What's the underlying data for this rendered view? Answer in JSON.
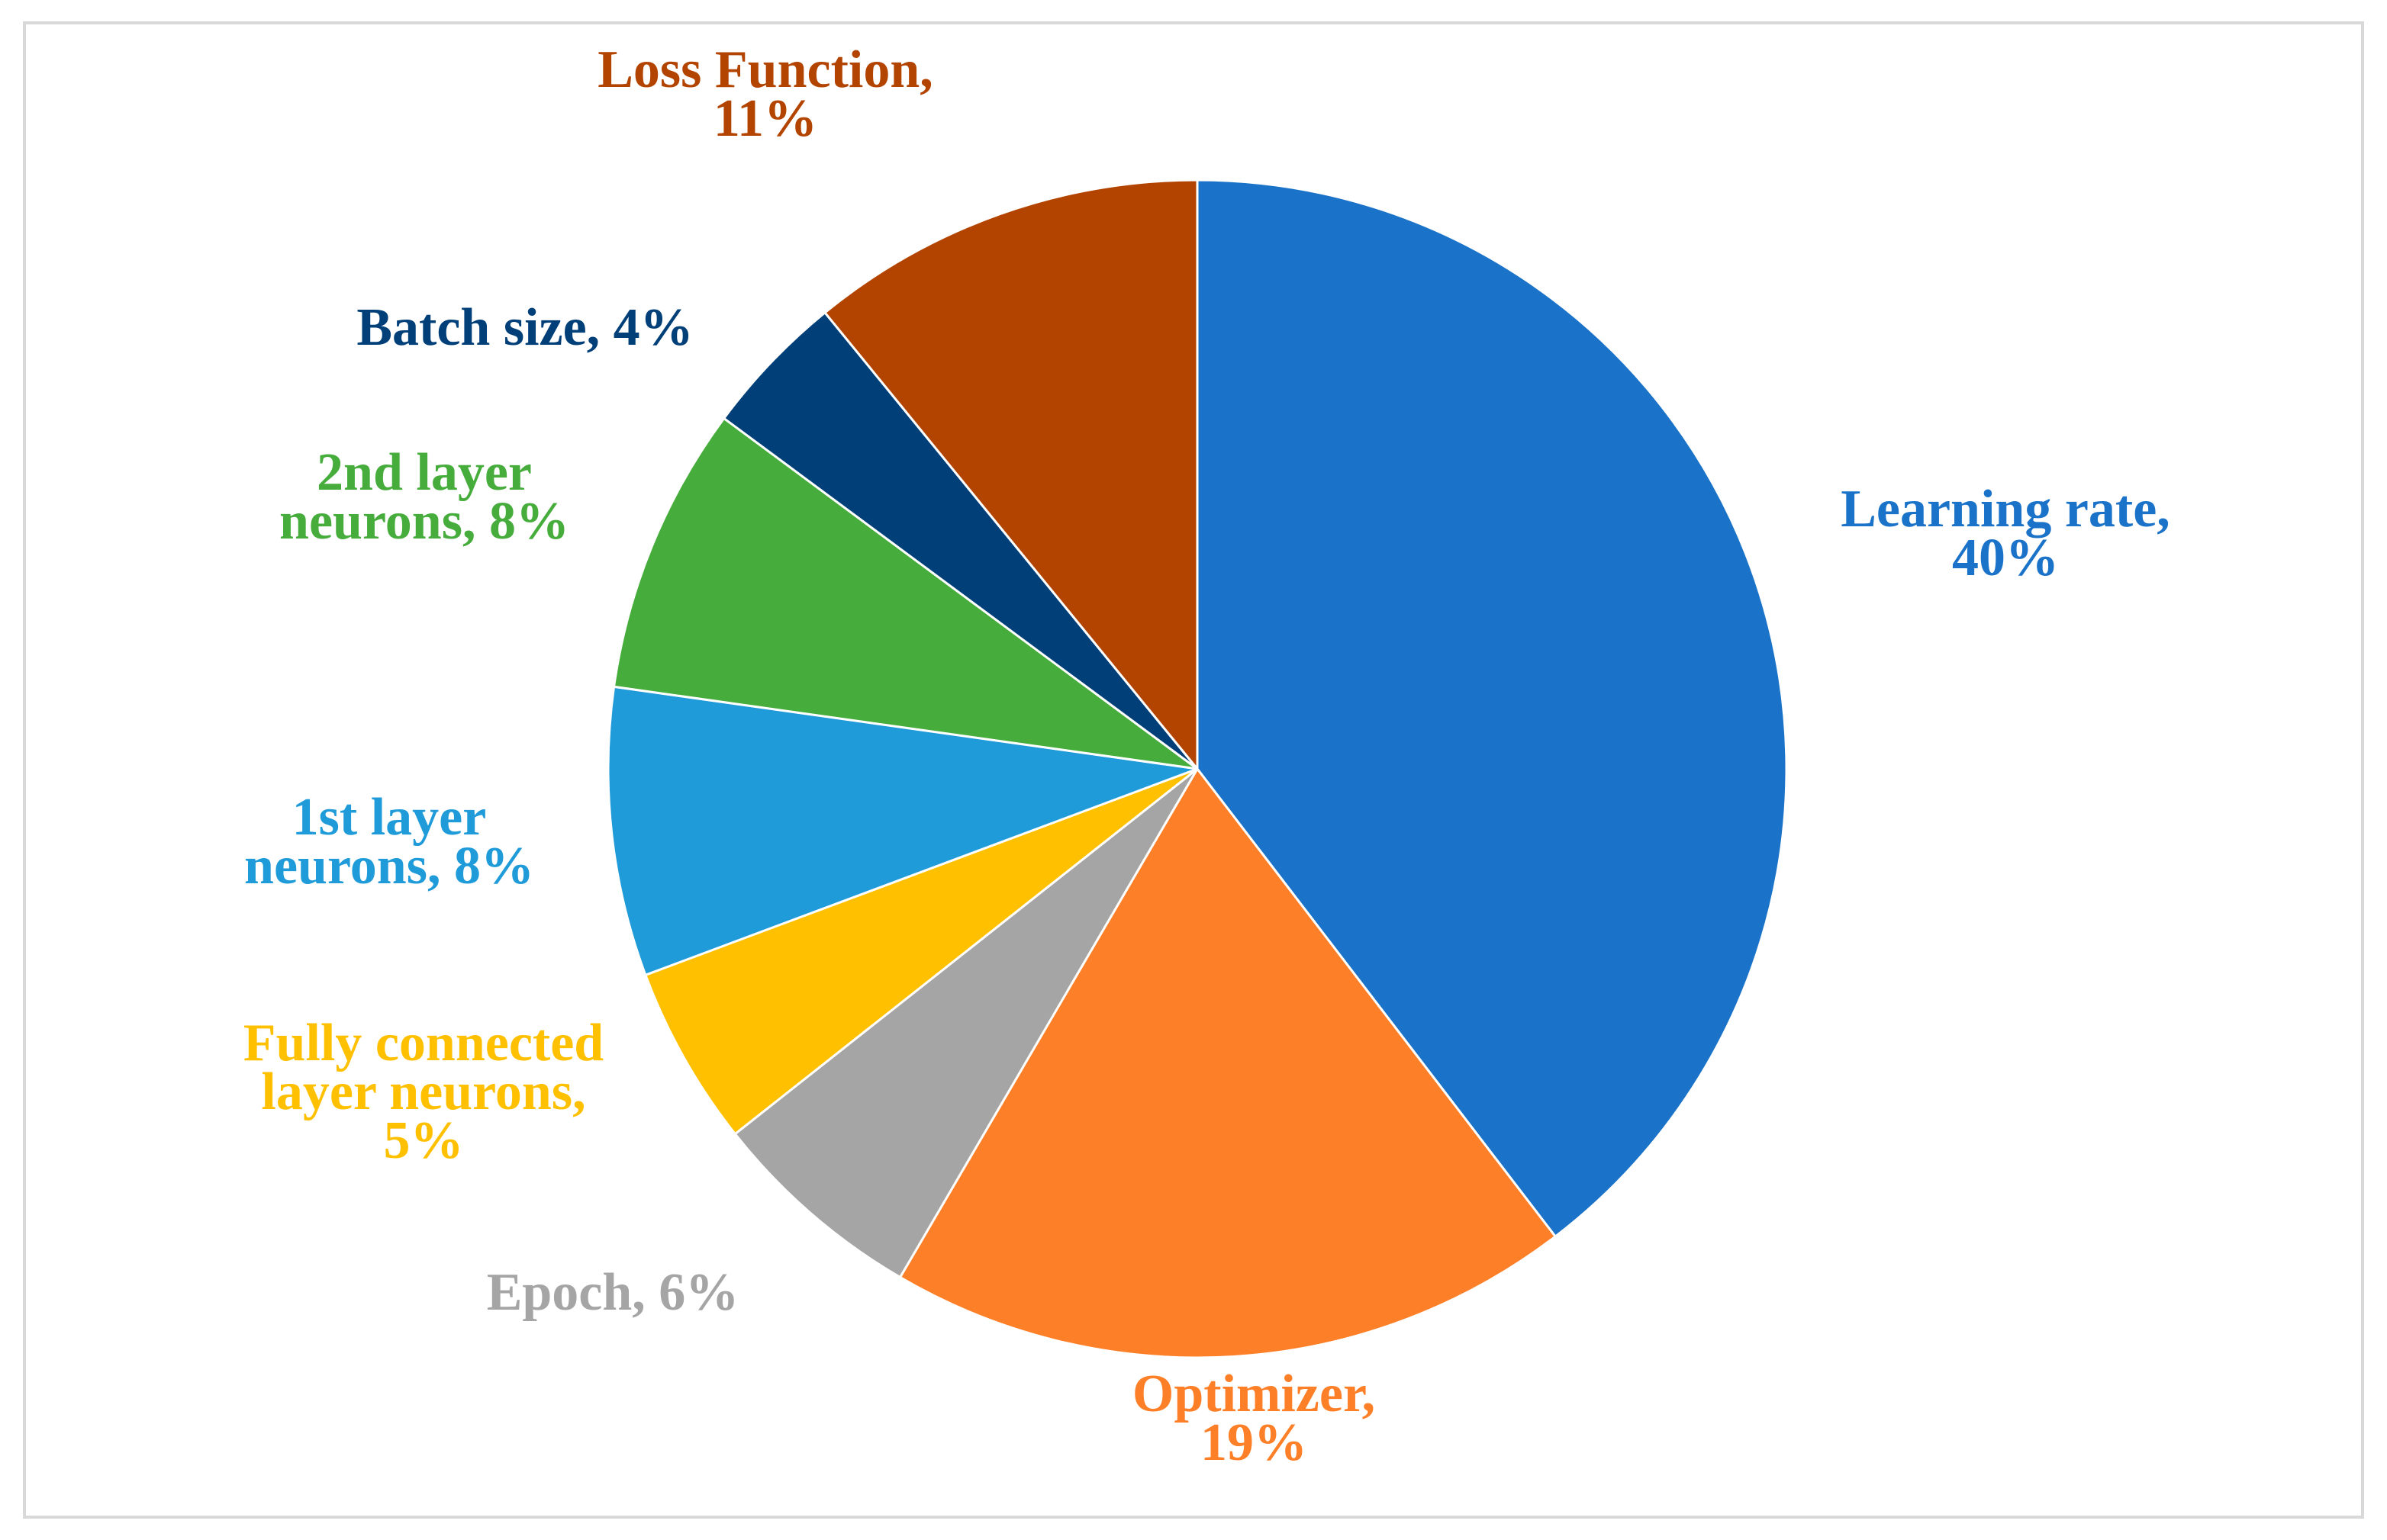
{
  "chart_data": {
    "type": "pie",
    "title": "",
    "legend": "none",
    "slices": [
      {
        "label": "Learning rate",
        "value": 40,
        "color": "#1a73c8",
        "label_lines": [
          "Learning rate,",
          "40%"
        ]
      },
      {
        "label": "Optimizer",
        "value": 19,
        "color": "#fd7f28",
        "label_lines": [
          "Optimizer,",
          "19%"
        ]
      },
      {
        "label": "Epoch",
        "value": 6,
        "color": "#a5a5a5",
        "label_lines": [
          "Epoch, 6%"
        ]
      },
      {
        "label": "Fully connected layer neurons",
        "value": 5,
        "color": "#ffc000",
        "label_lines": [
          "Fully connected",
          "layer neurons,",
          "5%"
        ]
      },
      {
        "label": "1st layer neurons",
        "value": 8,
        "color": "#1f9bd9",
        "label_lines": [
          "1st layer",
          "neurons, 8%"
        ]
      },
      {
        "label": "2nd layer neurons",
        "value": 8,
        "color": "#46ad3c",
        "label_lines": [
          "2nd layer",
          "neurons, 8%"
        ]
      },
      {
        "label": "Batch size",
        "value": 4,
        "color": "#003f78",
        "label_lines": [
          "Batch size, 4%"
        ]
      },
      {
        "label": "Loss Function",
        "value": 11,
        "color": "#b34400",
        "label_lines": [
          "Loss Function,",
          "11%"
        ]
      }
    ]
  }
}
